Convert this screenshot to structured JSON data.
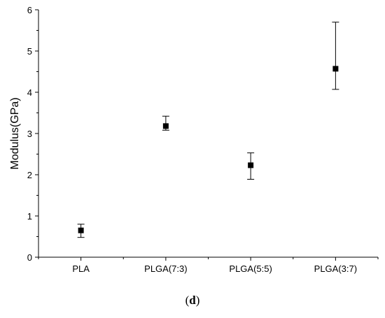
{
  "chart_data": {
    "type": "scatter",
    "title": "",
    "xlabel": "",
    "ylabel": "Modulus(GPa)",
    "categories": [
      "PLA",
      "PLGA(7:3)",
      "PLGA(5:5)",
      "PLGA(3:7)"
    ],
    "values": [
      0.65,
      3.18,
      2.23,
      4.57
    ],
    "error_upper": [
      0.8,
      3.42,
      2.53,
      5.7
    ],
    "error_lower": [
      0.48,
      3.08,
      1.89,
      4.07
    ],
    "ylim": [
      0,
      6
    ],
    "yticks": [
      "0",
      "1",
      "2",
      "3",
      "4",
      "5",
      "6"
    ],
    "marker": "square",
    "grid": false,
    "legend": "none",
    "color": "#000000"
  },
  "caption": {
    "open": "(",
    "label": "d",
    "close": ")"
  }
}
